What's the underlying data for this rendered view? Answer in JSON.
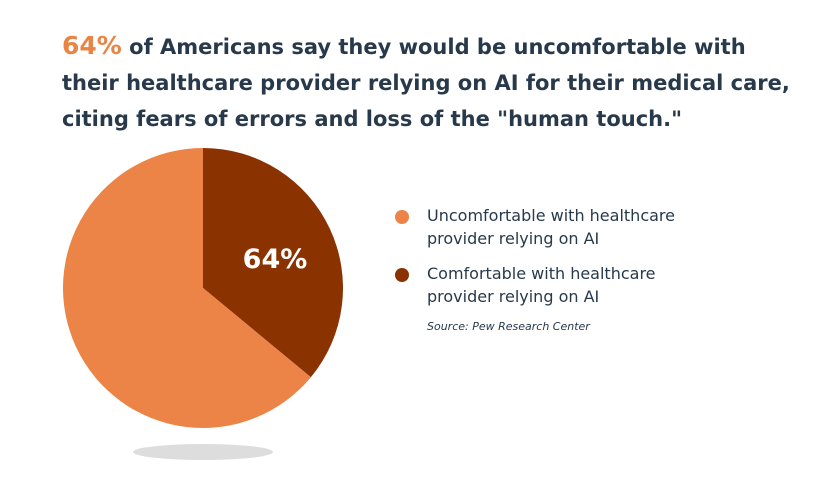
{
  "headline": {
    "highlight": "64%",
    "text": " of Americans say they would be uncomfortable with their healthcare provider relying on AI for their medical care, citing fears of errors and loss of the \"human touch.\""
  },
  "chart_data": {
    "type": "pie",
    "slices": [
      {
        "label": "Uncomfortable with healthcare provider relying on AI",
        "value": 64,
        "color": "#ec8447"
      },
      {
        "label": "Comfortable with healthcare provider relying on AI",
        "value": 36,
        "color": "#8b3300"
      }
    ],
    "data_label": "64%",
    "legend_position": "right",
    "source": "Source: Pew Research Center"
  }
}
